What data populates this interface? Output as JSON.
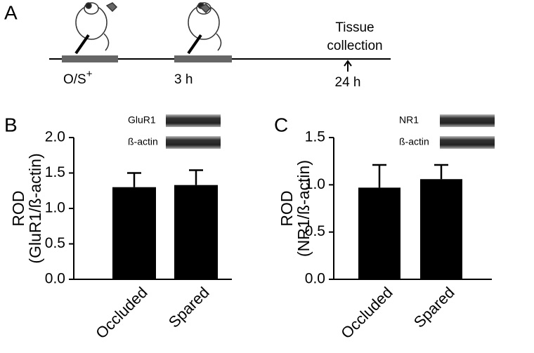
{
  "timeline": {
    "panel": "A",
    "events": [
      {
        "label": "O/S",
        "superscript": "+"
      },
      {
        "label": "3 h"
      }
    ],
    "end_label": [
      "Tissue",
      "collection"
    ],
    "end_time": "24 h"
  },
  "chart_data": [
    {
      "type": "bar",
      "panel": "B",
      "ylabel": [
        "ROD",
        "(GluR1/ß-actin)"
      ],
      "blot_labels": [
        "GluR1",
        "ß-actin"
      ],
      "categories": [
        "Occluded",
        "Spared"
      ],
      "values": [
        1.3,
        1.33
      ],
      "errors": [
        0.2,
        0.21
      ],
      "color": "#000000",
      "ylim": [
        0,
        2
      ],
      "yticks": [
        {
          "value": 0,
          "label": "0.0"
        },
        {
          "value": 0.5,
          "label": "0.5"
        },
        {
          "value": 1,
          "label": "1.0"
        },
        {
          "value": 1.5,
          "label": "1.5"
        },
        {
          "value": 2,
          "label": "2.0"
        }
      ]
    },
    {
      "type": "bar",
      "panel": "C",
      "ylabel": [
        "ROD",
        "(NR1/ß-actin)"
      ],
      "blot_labels": [
        "NR1",
        "ß-actin"
      ],
      "categories": [
        "Occluded",
        "Spared"
      ],
      "values": [
        0.97,
        1.06
      ],
      "errors": [
        0.24,
        0.15
      ],
      "color": "#000000",
      "ylim": [
        0,
        1.5
      ],
      "yticks": [
        {
          "value": 0,
          "label": "0.0"
        },
        {
          "value": 0.5,
          "label": "0.5"
        },
        {
          "value": 1,
          "label": "1.0"
        },
        {
          "value": 1.5,
          "label": "1.5"
        }
      ]
    }
  ]
}
